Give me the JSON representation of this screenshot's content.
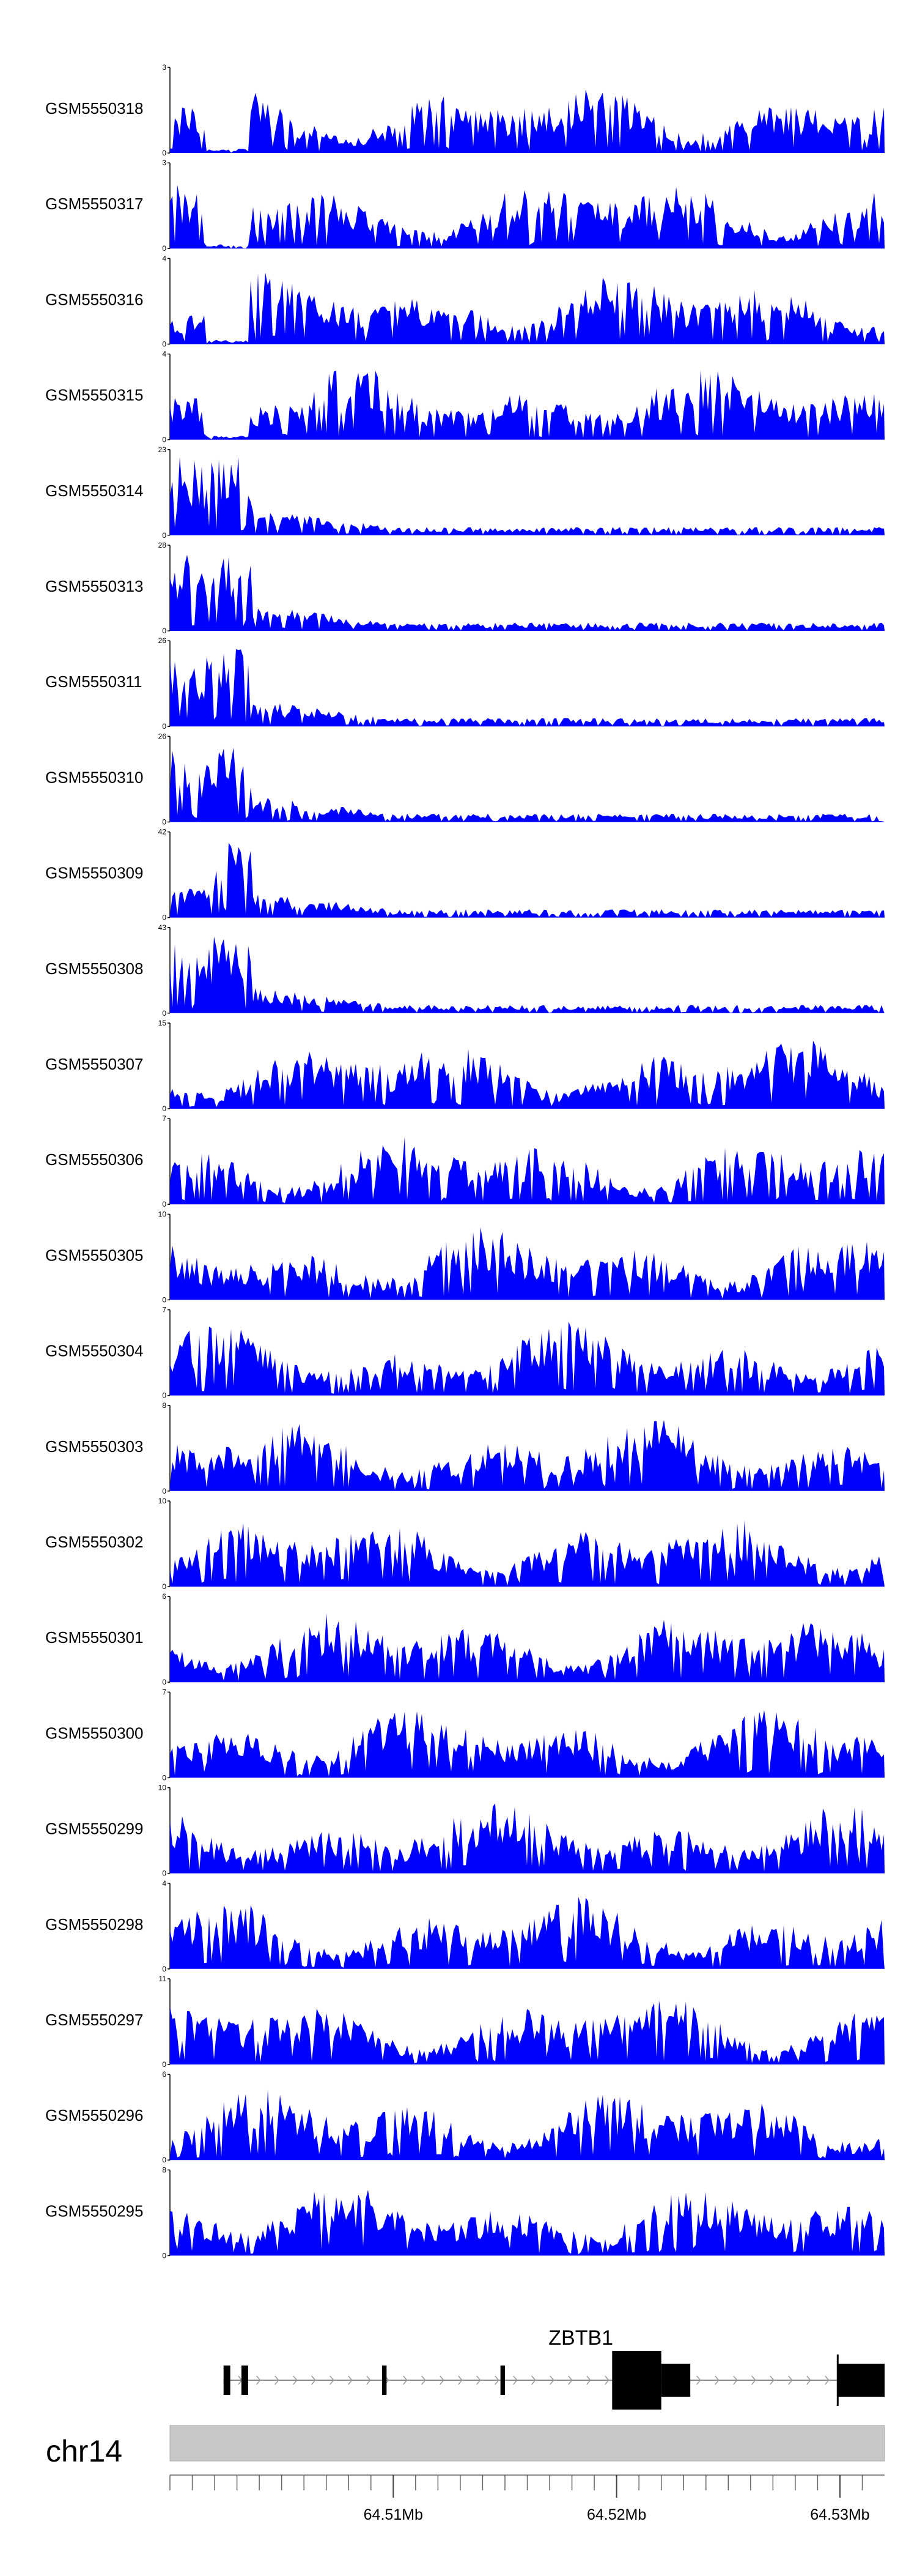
{
  "chart_data": {
    "type": "area",
    "tracks": [
      {
        "name": "GSM5550318",
        "ymax": "3"
      },
      {
        "name": "GSM5550317",
        "ymax": "3"
      },
      {
        "name": "GSM5550316",
        "ymax": "4"
      },
      {
        "name": "GSM5550315",
        "ymax": "4"
      },
      {
        "name": "GSM5550314",
        "ymax": "23"
      },
      {
        "name": "GSM5550313",
        "ymax": "28"
      },
      {
        "name": "GSM5550311",
        "ymax": "26"
      },
      {
        "name": "GSM5550310",
        "ymax": "26"
      },
      {
        "name": "GSM5550309",
        "ymax": "42"
      },
      {
        "name": "GSM5550308",
        "ymax": "43"
      },
      {
        "name": "GSM5550307",
        "ymax": "15"
      },
      {
        "name": "GSM5550306",
        "ymax": "7"
      },
      {
        "name": "GSM5550305",
        "ymax": "10"
      },
      {
        "name": "GSM5550304",
        "ymax": "7"
      },
      {
        "name": "GSM5550303",
        "ymax": "8"
      },
      {
        "name": "GSM5550302",
        "ymax": "10"
      },
      {
        "name": "GSM5550301",
        "ymax": "6"
      },
      {
        "name": "GSM5550300",
        "ymax": "7"
      },
      {
        "name": "GSM5550299",
        "ymax": "10"
      },
      {
        "name": "GSM5550298",
        "ymax": "4"
      },
      {
        "name": "GSM5550297",
        "ymax": "11"
      },
      {
        "name": "GSM5550296",
        "ymax": "6"
      },
      {
        "name": "GSM5550295",
        "ymax": "8"
      }
    ],
    "gene": {
      "name": "ZBTB1",
      "exons_mb": [
        [
          64.5024,
          64.5027
        ],
        [
          64.5032,
          64.5035
        ],
        [
          64.5095,
          64.5097
        ],
        [
          64.5148,
          64.515
        ],
        [
          64.5198,
          64.522
        ],
        [
          64.522,
          64.5233
        ],
        [
          64.5299,
          64.532
        ]
      ],
      "tall_exons_mb": [
        [
          64.5198,
          64.522
        ],
        [
          64.5299,
          64.532
        ]
      ],
      "mid_exons_mb": [
        [
          64.522,
          64.5233
        ]
      ],
      "span_mb": [
        64.5024,
        64.532
      ]
    },
    "chromosome": "chr14",
    "xlim_mb": [
      64.5,
      64.532
    ],
    "xticks_mb": [
      64.5,
      64.501,
      64.502,
      64.503,
      64.504,
      64.505,
      64.506,
      64.507,
      64.508,
      64.509,
      64.51,
      64.511,
      64.512,
      64.513,
      64.514,
      64.515,
      64.516,
      64.517,
      64.518,
      64.519,
      64.52,
      64.521,
      64.522,
      64.523,
      64.524,
      64.525,
      64.526,
      64.527,
      64.528,
      64.529,
      64.53,
      64.531
    ],
    "xtick_labels": [
      {
        "mb": 64.51,
        "label": "64.51Mb"
      },
      {
        "mb": 64.52,
        "label": "64.52Mb"
      },
      {
        "mb": 64.53,
        "label": "64.53Mb"
      }
    ],
    "fill_color": "#0000ff",
    "ideogram_color": "#c8c8c8"
  }
}
